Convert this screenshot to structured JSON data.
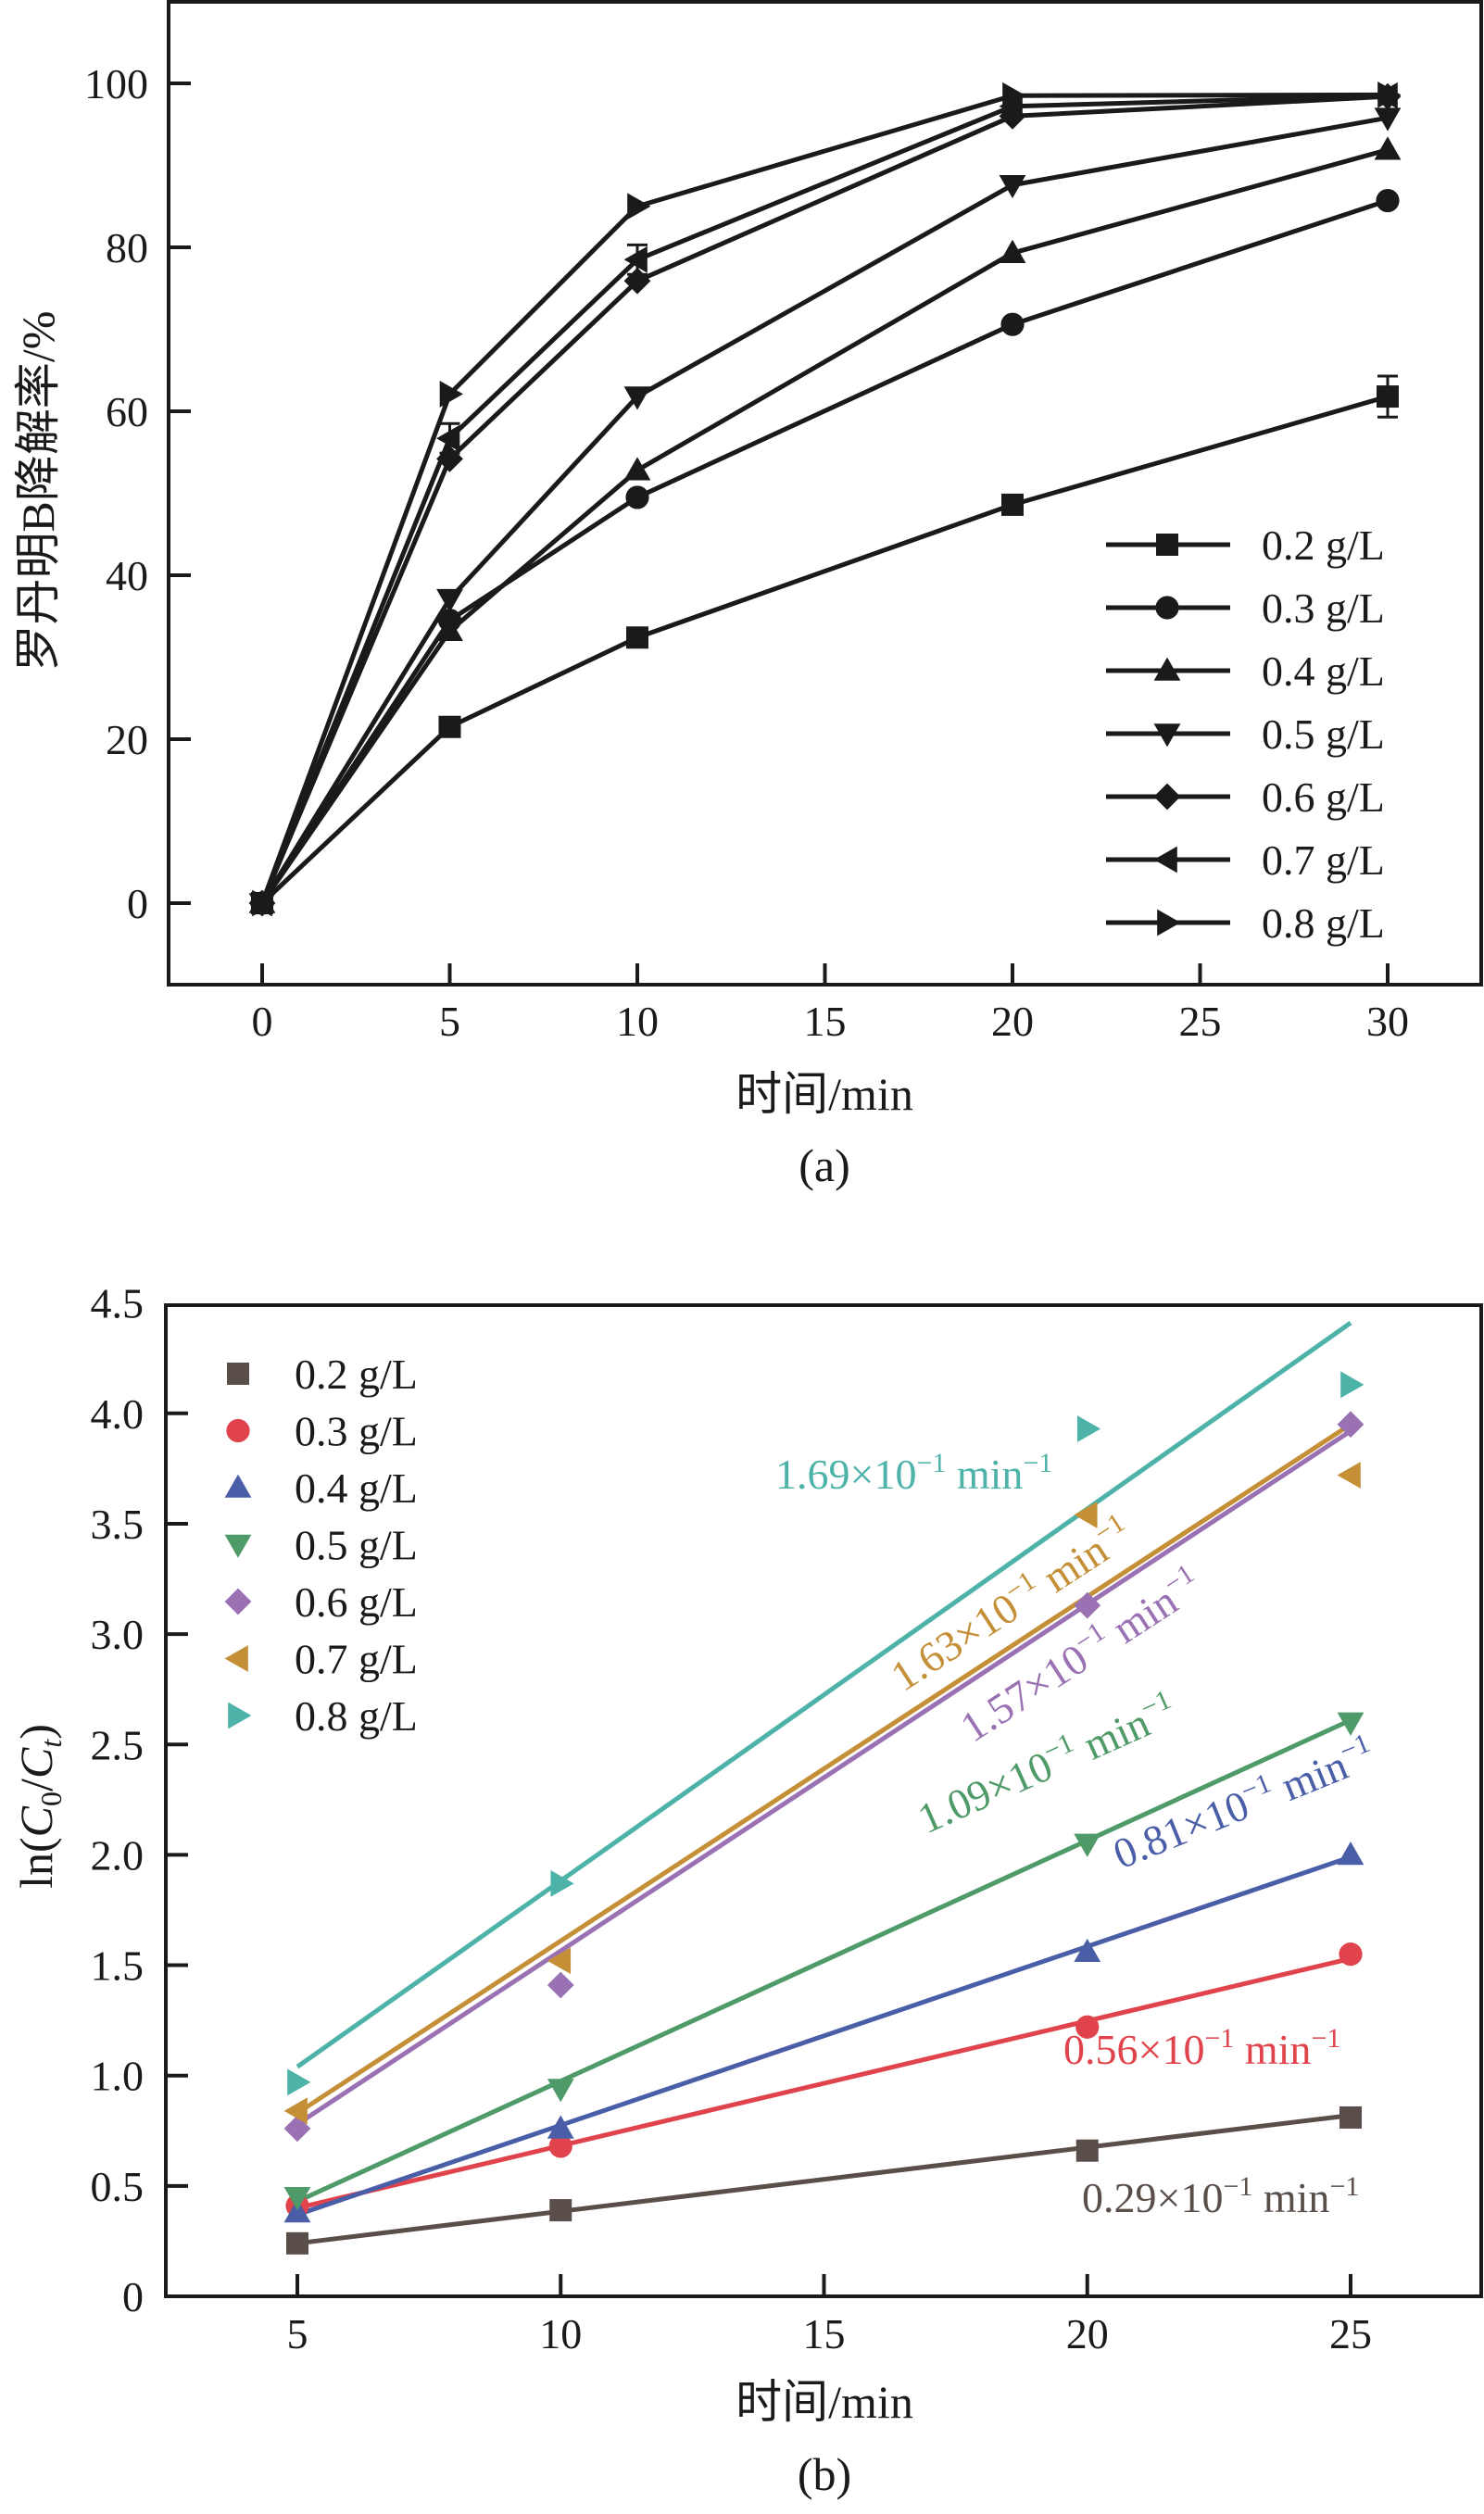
{
  "chart_data": [
    {
      "panel": "(a)",
      "type": "line",
      "title": "",
      "xlabel": "时间/min",
      "ylabel": "罗丹明B降解率/%",
      "xlim": [
        -3,
        33
      ],
      "ylim": [
        -10,
        110
      ],
      "xticks": [
        0,
        5,
        10,
        15,
        20,
        25,
        30
      ],
      "xtick_labels": [
        "0",
        "5",
        "10",
        "15",
        "20",
        "25",
        "30"
      ],
      "yticks": [
        0,
        20,
        40,
        60,
        80,
        100
      ],
      "ytick_labels": [
        "0",
        "20",
        "40",
        "60",
        "80",
        "100"
      ],
      "grid": false,
      "legend_position": "bottom-right",
      "x": [
        0,
        5,
        10,
        20,
        30
      ],
      "series": [
        {
          "name": "0.2 g/L",
          "marker": "square",
          "color": "#1a1a1a",
          "values": [
            0,
            21.5,
            32.4,
            48.6,
            61.8
          ],
          "error_at": [
            30
          ],
          "error": 2.5
        },
        {
          "name": "0.3 g/L",
          "marker": "circle",
          "color": "#1a1a1a",
          "values": [
            0,
            34.5,
            49.5,
            70.6,
            85.7
          ]
        },
        {
          "name": "0.4 g/L",
          "marker": "triangle-up",
          "color": "#1a1a1a",
          "values": [
            0,
            33.2,
            52.8,
            79.3,
            91.9
          ]
        },
        {
          "name": "0.5 g/L",
          "marker": "triangle-down",
          "color": "#1a1a1a",
          "values": [
            0,
            37.1,
            61.8,
            87.6,
            95.8
          ]
        },
        {
          "name": "0.6 g/L",
          "marker": "diamond",
          "color": "#1a1a1a",
          "values": [
            0,
            54.2,
            75.9,
            96.0,
            98.4
          ]
        },
        {
          "name": "0.7 g/L",
          "marker": "triangle-left",
          "color": "#1a1a1a",
          "values": [
            0,
            56.7,
            78.5,
            97.2,
            98.5
          ],
          "error_at": [
            5,
            10
          ],
          "error": 1.8
        },
        {
          "name": "0.8 g/L",
          "marker": "triangle-right",
          "color": "#1a1a1a",
          "values": [
            0,
            62.1,
            85.0,
            98.5,
            98.6
          ]
        }
      ]
    },
    {
      "panel": "(b)",
      "type": "scatter",
      "title": "",
      "xlabel": "时间/min",
      "ylabel": "ln(C0/Ct)",
      "xlim": [
        2.5,
        27.5
      ],
      "ylim": [
        0,
        4.5
      ],
      "xticks": [
        5,
        10,
        15,
        20,
        25
      ],
      "xtick_labels": [
        "5",
        "10",
        "15",
        "20",
        "25"
      ],
      "yticks": [
        0,
        0.5,
        1.0,
        1.5,
        2.0,
        2.5,
        3.0,
        3.5,
        4.0,
        4.5
      ],
      "ytick_labels": [
        "0",
        "0.5",
        "1.0",
        "1.5",
        "2.0",
        "2.5",
        "3.0",
        "3.5",
        "4.0",
        "4.5"
      ],
      "grid": false,
      "legend_position": "top-left",
      "x": [
        5,
        10,
        20,
        25
      ],
      "series": [
        {
          "name": "0.2 g/L",
          "marker": "square",
          "color": "#5a4e4a",
          "values": [
            0.24,
            0.39,
            0.66,
            0.81
          ],
          "fit": [
            0.24,
            0.82
          ],
          "rate_label": {
            "value": "0.29",
            "text": "0.29×10",
            "exp": "−1",
            "unit": " min",
            "unit_exp": "−1"
          }
        },
        {
          "name": "0.3 g/L",
          "marker": "circle",
          "color": "#e0434b",
          "values": [
            0.41,
            0.68,
            1.22,
            1.55
          ],
          "fit": [
            0.4,
            1.53
          ],
          "rate_label": {
            "value": "0.56",
            "text": "0.56×10",
            "exp": "−1",
            "unit": " min",
            "unit_exp": "−1"
          }
        },
        {
          "name": "0.4 g/L",
          "marker": "triangle-up",
          "color": "#4a5ea8",
          "values": [
            0.38,
            0.76,
            1.56,
            2.0
          ],
          "fit": [
            0.37,
            1.99
          ],
          "rate_label": {
            "value": "0.81",
            "text": "0.81×10",
            "exp": "−1",
            "unit": " min",
            "unit_exp": "−1"
          }
        },
        {
          "name": "0.5 g/L",
          "marker": "triangle-down",
          "color": "#4e9a68",
          "values": [
            0.45,
            0.94,
            2.05,
            2.6
          ],
          "fit": [
            0.43,
            2.61
          ],
          "rate_label": {
            "value": "1.09",
            "text": "1.09×10",
            "exp": "−1",
            "unit": " min",
            "unit_exp": "−1"
          }
        },
        {
          "name": "0.6 g/L",
          "marker": "diamond",
          "color": "#9a72b4",
          "values": [
            0.76,
            1.41,
            3.13,
            3.95
          ],
          "fit": [
            0.78,
            3.92
          ],
          "rate_label": {
            "value": "1.57",
            "text": "1.57×10",
            "exp": "−1",
            "unit": " min",
            "unit_exp": "−1"
          }
        },
        {
          "name": "0.7 g/L",
          "marker": "triangle-left",
          "color": "#c48f36",
          "values": [
            0.84,
            1.52,
            3.54,
            3.72
          ],
          "fit": [
            0.83,
            3.95
          ],
          "rate_label": {
            "value": "1.63",
            "text": "1.63×10",
            "exp": "−1",
            "unit": " min",
            "unit_exp": "−1"
          }
        },
        {
          "name": "0.8 g/L",
          "marker": "triangle-right",
          "color": "#4db3a8",
          "values": [
            0.97,
            1.87,
            3.93,
            4.13
          ],
          "fit": [
            1.04,
            4.41
          ],
          "rate_label": {
            "value": "1.69",
            "text": "1.69×10",
            "exp": "−1",
            "unit": " min",
            "unit_exp": "−1"
          }
        }
      ]
    }
  ]
}
